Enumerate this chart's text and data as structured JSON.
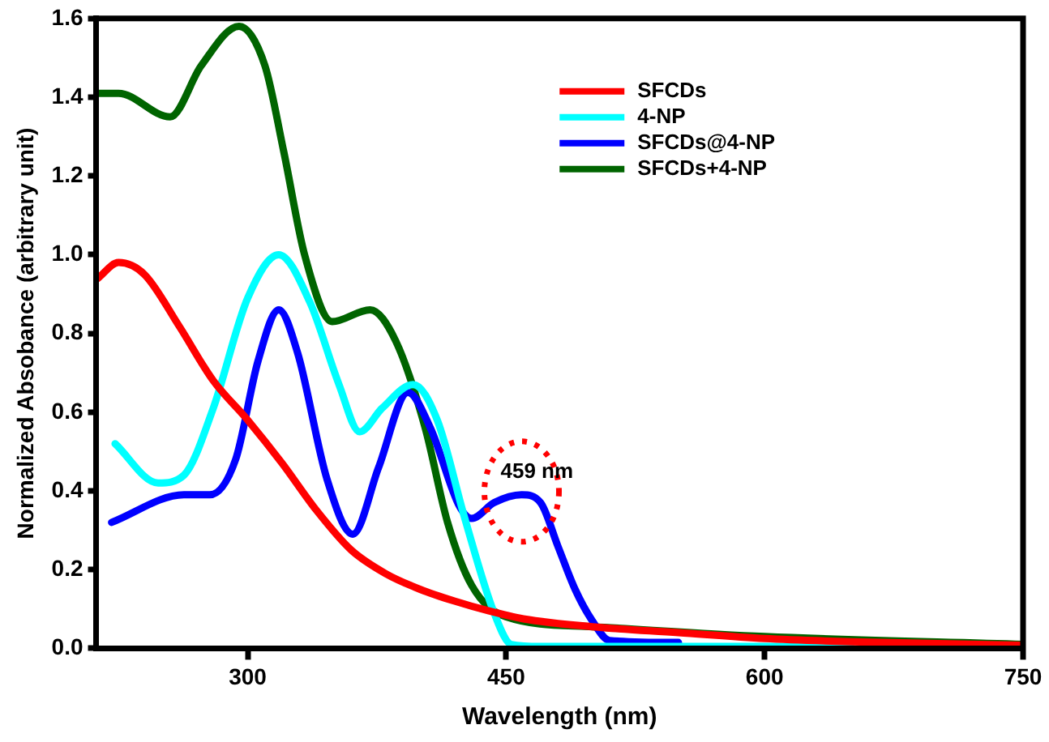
{
  "chart_data": {
    "type": "line",
    "xlabel": "Wavelength (nm)",
    "ylabel": "Normalized Absobance (arbitrary unit)",
    "xlim": [
      212,
      750
    ],
    "ylim": [
      0,
      1.6
    ],
    "xticks": [
      300,
      450,
      600,
      750
    ],
    "yticks": [
      {
        "value": 0,
        "label": "0.0"
      },
      0.2,
      0.4,
      0.6,
      0.8,
      {
        "value": 1,
        "label": "1.0"
      },
      1.2,
      1.4,
      1.6
    ],
    "grid": false,
    "legend": "top right",
    "marker": "none",
    "line_style": "solid",
    "series": [
      {
        "name": "SFCDs",
        "color": "#ff0000",
        "x": [
          213,
          225,
          240,
          260,
          280,
          300,
          320,
          340,
          360,
          380,
          400,
          420,
          440,
          460,
          500,
          550,
          600,
          650,
          750
        ],
        "values": [
          0.94,
          0.98,
          0.95,
          0.82,
          0.68,
          0.58,
          0.47,
          0.35,
          0.25,
          0.19,
          0.15,
          0.12,
          0.095,
          0.075,
          0.055,
          0.04,
          0.025,
          0.017,
          0.008
        ]
      },
      {
        "name": "4-NP",
        "color": "#00ffff",
        "x": [
          223,
          248,
          263,
          280,
          300,
          318,
          336,
          353,
          365,
          378,
          396,
          410,
          426,
          443,
          453,
          470,
          550,
          650
        ],
        "values": [
          0.52,
          0.42,
          0.44,
          0.61,
          0.89,
          1.0,
          0.88,
          0.67,
          0.55,
          0.61,
          0.67,
          0.58,
          0.33,
          0.09,
          0.01,
          0.005,
          0.005,
          0.005
        ]
      },
      {
        "name": "SFCDs@4-NP",
        "color": "#0000ff",
        "x": [
          221,
          263,
          278,
          293,
          306,
          318,
          329,
          346,
          361,
          376,
          393,
          406,
          423,
          430,
          443,
          459,
          470,
          480,
          490,
          500,
          510,
          550
        ],
        "values": [
          0.32,
          0.39,
          0.39,
          0.48,
          0.73,
          0.86,
          0.75,
          0.43,
          0.29,
          0.46,
          0.65,
          0.56,
          0.36,
          0.33,
          0.37,
          0.39,
          0.37,
          0.26,
          0.15,
          0.07,
          0.02,
          0.015
        ]
      },
      {
        "name": "SFCDs+4-NP",
        "color": "#006400",
        "x": [
          213,
          225,
          255,
          273,
          295,
          310,
          321,
          333,
          349,
          371,
          386,
          403,
          416,
          430,
          450,
          500,
          600,
          750
        ],
        "values": [
          1.41,
          1.41,
          1.35,
          1.48,
          1.58,
          1.48,
          1.26,
          1.0,
          0.83,
          0.86,
          0.78,
          0.56,
          0.32,
          0.16,
          0.08,
          0.055,
          0.03,
          0.01
        ]
      }
    ],
    "annotations": [
      {
        "text": "459 nm",
        "x": 459,
        "y": 0.39
      }
    ]
  }
}
